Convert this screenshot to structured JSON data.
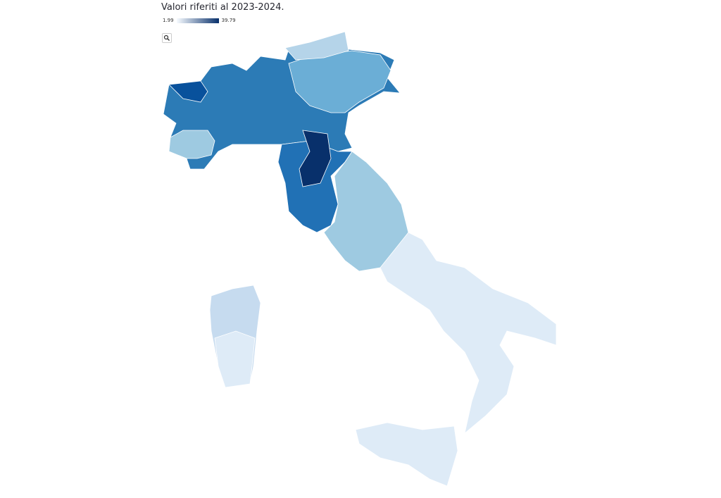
{
  "header": {
    "title": "Valori riferiti al 2023-2024."
  },
  "legend": {
    "min": 1.99,
    "max": 39.79
  }
}
